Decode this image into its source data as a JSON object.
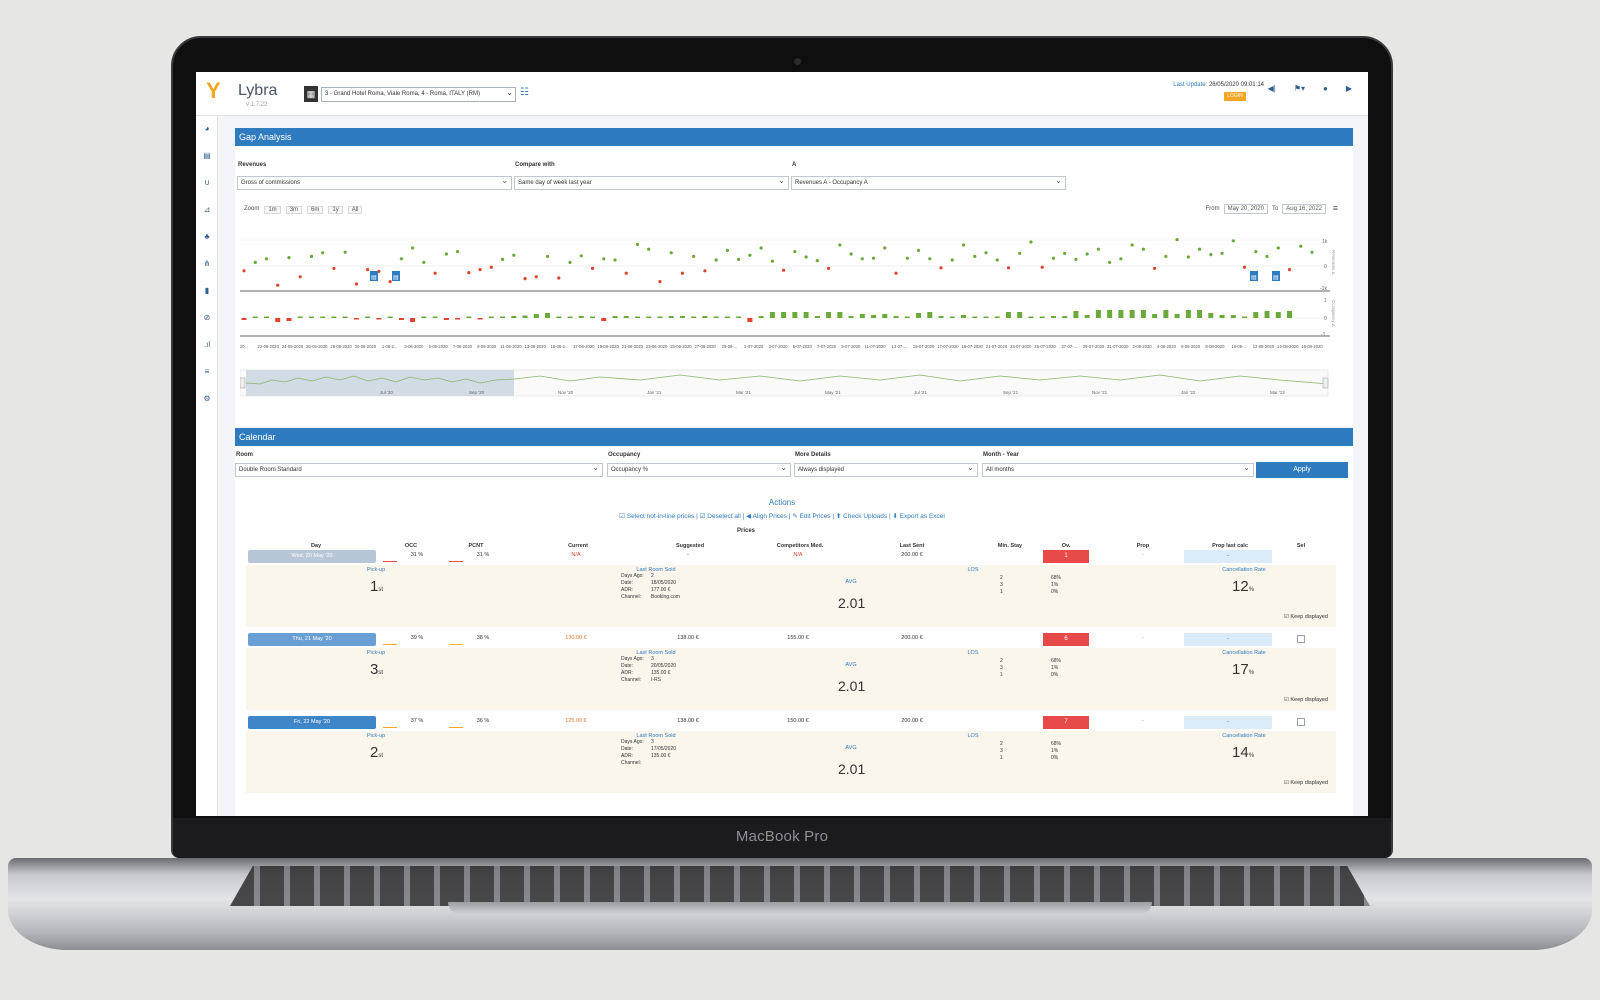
{
  "device": {
    "brand": "MacBook Pro"
  },
  "app": {
    "logo_mark": "Y",
    "logo_text": "Lybra",
    "version": "v 1.7.22",
    "hotel_select": "3 - Grand Hotel Roma, Viale Roma, 4 - Roma, ITALY (RM)",
    "last_update_label": "Last Update:",
    "last_update_value": "26/05/2020 09:01:14",
    "login_label": "LOGIN",
    "top_icons": [
      "share-icon",
      "flag-icon",
      "user-icon",
      "logout-icon"
    ]
  },
  "sidebar": [
    "dashboard-icon",
    "calendar-icon",
    "magnet-icon",
    "chart-icon",
    "users-icon",
    "hierarchy-icon",
    "document-icon",
    "target-icon",
    "signal-icon",
    "list-icon",
    "settings-icon"
  ],
  "gap_analysis": {
    "title": "Gap Analysis",
    "revenues_label": "Revenues",
    "revenues_value": "Gross of commissions",
    "compare_label": "Compare with",
    "compare_value": "Same day of week last year",
    "a_label": "A",
    "a_value": "Revenues A - Occupancy A",
    "zoom_label": "Zoom",
    "zoom_buttons": [
      "1m",
      "3m",
      "6m",
      "1y",
      "All"
    ],
    "from_label": "From",
    "from_value": "May 20, 2020",
    "to_label": "To",
    "to_value": "Aug 16, 2022",
    "x_ticks": [
      "20...",
      "22-05-2020",
      "24-05-2020",
      "26-05-2020",
      "28-05-2020",
      "30-05-2020",
      "1-06-2...",
      "3-06-2020",
      "5-06-2020",
      "7-06-2020",
      "9-06-2020",
      "11-06-2020",
      "13-06-2020",
      "15-06-2...",
      "17-06-2020",
      "19-06-2020",
      "21-06-2020",
      "23-06-2020",
      "25-06-2020",
      "27-06-2020",
      "29-06-...",
      "1-07-2020",
      "3-07-2020",
      "5-07-2020",
      "7-07-2020",
      "9-07-2020",
      "11-07-2020",
      "13-07-...",
      "15-07-2020",
      "17-07-2020",
      "19-07-2020",
      "21-07-2020",
      "23-07-2020",
      "25-07-2020",
      "27-07-...",
      "29-07-2020",
      "31-07-2020",
      "2-08-2020",
      "4-08-2020",
      "6-08-2020",
      "8-08-2020",
      "10-08-...",
      "12-08-2020",
      "14-08-2020",
      "16-08-2020"
    ],
    "nav_labels": [
      "Jul '20",
      "Sep '20",
      "Nov '20",
      "Jan '21",
      "Mar '21",
      "May '21",
      "Jul '21",
      "Sep '21",
      "Nov '21",
      "Jan '22",
      "Mar '22",
      "May '22"
    ],
    "y_top_ticks": [
      "1k",
      "0",
      "-1k"
    ],
    "y_bottom_ticks": [
      "1",
      "0",
      "-1"
    ],
    "y_top_label": "Revenues Δ",
    "y_bottom_label": "Occupancy Δ"
  },
  "chart_data": {
    "type": "scatter",
    "series": [
      {
        "name": "Revenues Δ",
        "values": [
          -80,
          60,
          120,
          -320,
          140,
          -180,
          160,
          220,
          -40,
          230,
          -300,
          -60,
          -90,
          -260,
          120,
          300,
          60,
          -120,
          200,
          240,
          -110,
          -60,
          -20,
          110,
          180,
          -210,
          -180,
          160,
          -200,
          60,
          170,
          -40,
          120,
          100,
          -120,
          360,
          280,
          -260,
          220,
          -120,
          160,
          -80,
          100,
          260,
          110,
          180,
          300,
          80,
          -70,
          240,
          150,
          90,
          -40,
          350,
          200,
          120,
          130,
          300,
          -120,
          130,
          260,
          120,
          -30,
          100,
          350,
          160,
          220,
          100,
          -30,
          210,
          400,
          -20,
          130,
          210,
          110,
          200,
          280,
          60,
          120,
          350,
          280,
          -40,
          160,
          440,
          150,
          280,
          190,
          210,
          420,
          -20,
          240,
          160,
          300,
          -60,
          330,
          230
        ]
      },
      {
        "name": "Occupancy Δ",
        "values": [
          -0.2,
          0.0,
          0.0,
          -0.4,
          -0.3,
          0.1,
          0.0,
          0.05,
          0.1,
          0.05,
          -0.1,
          0.05,
          -0.1,
          0.1,
          -0.2,
          -0.4,
          0.05,
          0.1,
          -0.2,
          -0.1,
          0.05,
          -0.1,
          0.05,
          0.1,
          0.2,
          0.25,
          0.4,
          0.5,
          0.1,
          0.1,
          0.2,
          0.1,
          -0.3,
          0.2,
          0.2,
          0.05,
          0.05,
          0.1,
          0.2,
          0.2,
          0.1,
          0.2,
          0.1,
          0.1,
          0.1,
          -0.4,
          0.2,
          0.6,
          0.6,
          0.6,
          0.6,
          0.2,
          0.6,
          0.6,
          0.2,
          0.4,
          0.3,
          0.4,
          0.2,
          0.1,
          0.5,
          0.6,
          0.2,
          0.1,
          0.3,
          0.1,
          0.1,
          0.1,
          0.6,
          0.6,
          0.1,
          0.1,
          0.2,
          0.2,
          0.7,
          0.3,
          0.8,
          0.8,
          0.8,
          0.8,
          0.8,
          0.4,
          0.8,
          0.4,
          0.8,
          0.8,
          0.5,
          0.3,
          0.3,
          0.1,
          0.6,
          0.7,
          0.6,
          0.7
        ]
      }
    ],
    "xlabel": "",
    "ylabel": ""
  },
  "calendar": {
    "title": "Calendar",
    "room_label": "Room",
    "room_value": "Double Room Standard",
    "occupancy_label": "Occupancy",
    "occupancy_value": "Occupancy %",
    "more_label": "More Details",
    "more_value": "Always displayed",
    "month_label": "Month - Year",
    "month_value": "All months",
    "apply_label": "Apply",
    "actions_title": "Actions",
    "actions_links": "☑ Select not-in-line prices | ☑ Deselect all | ◀ Align Prices | ✎ Edit Prices | ⬆ Check Uploads | ⬇ Export as Excel",
    "prices_label": "Prices",
    "columns": [
      "Day",
      "OCC",
      "PCNT",
      "Current",
      "Suggested",
      "Competitors Med.",
      "Last Sent",
      "Min. Stay",
      "Ov.",
      "Prop",
      "Prop last calc",
      "Sel"
    ],
    "days": [
      {
        "day": "Wed, 20 May '20",
        "occ": "31 %",
        "pcnt": "31 %",
        "current": "N/A",
        "suggested": "-",
        "competitors": "N/A",
        "last_sent": "200.00 €",
        "min_stay": "",
        "ov": "1",
        "prop": "-",
        "prop_last": "-",
        "pickup_label": "Pick-up",
        "pickup": "1",
        "pickup_unit": "st",
        "last_room_label": "Last Room Sold",
        "lr_keys": [
          "Days Ago:",
          "Date:",
          "ADR:",
          "Channel:"
        ],
        "lr_vals": [
          "2",
          "18/05/2020",
          "177.00 €",
          "Booking.com"
        ],
        "avg_label": "AVG",
        "avg": "2.01",
        "los_label": "LOS",
        "los_rows": [
          [
            "2",
            "68%"
          ],
          [
            "3",
            "1%"
          ],
          [
            "1",
            "0%"
          ]
        ],
        "cancel_label": "Cancellation Rate",
        "cancel": "12",
        "cancel_unit": "%",
        "keep": "☑ Keep displayed",
        "color": "#b8c7d8",
        "current_class": "red",
        "comp_class": "red"
      },
      {
        "day": "Thu, 21 May '20",
        "occ": "39 %",
        "pcnt": "38 %",
        "current": "130.00 €",
        "suggested": "138.00 €",
        "competitors": "155.00 €",
        "last_sent": "200.00 €",
        "min_stay": "",
        "ov": "6",
        "prop": "-",
        "prop_last": "-",
        "pickup_label": "Pick-up",
        "pickup": "3",
        "pickup_unit": "st",
        "last_room_label": "Last Room Sold",
        "lr_keys": [
          "Days Ago:",
          "Date:",
          "ADR:",
          "Channel:"
        ],
        "lr_vals": [
          "3",
          "20/05/2020",
          "135.00 €",
          "I-RS"
        ],
        "avg_label": "AVG",
        "avg": "2.01",
        "los_label": "LOS",
        "los_rows": [
          [
            "2",
            "68%"
          ],
          [
            "3",
            "1%"
          ],
          [
            "1",
            "0%"
          ]
        ],
        "cancel_label": "Cancellation Rate",
        "cancel": "17",
        "cancel_unit": "%",
        "keep": "☑ Keep displayed",
        "color": "#6a9fd4",
        "current_class": "orange",
        "comp_class": ""
      },
      {
        "day": "Fri, 22 May '20",
        "occ": "37 %",
        "pcnt": "36 %",
        "current": "125.00 €",
        "suggested": "138.00 €",
        "competitors": "150.00 €",
        "last_sent": "200.00 €",
        "min_stay": "",
        "ov": "7",
        "prop": "-",
        "prop_last": "-",
        "pickup_label": "Pick-up",
        "pickup": "2",
        "pickup_unit": "st",
        "last_room_label": "Last Room Sold",
        "lr_keys": [
          "Days Ago:",
          "Date:",
          "ADR:",
          "Channel:"
        ],
        "lr_vals": [
          "3",
          "17/05/2020",
          "135.00 €",
          ""
        ],
        "avg_label": "AVG",
        "avg": "2.01",
        "los_label": "LOS",
        "los_rows": [
          [
            "2",
            "68%"
          ],
          [
            "3",
            "1%"
          ],
          [
            "1",
            "0%"
          ]
        ],
        "cancel_label": "Cancellation Rate",
        "cancel": "14",
        "cancel_unit": "%",
        "keep": "☑ Keep displayed",
        "color": "#3f86c9",
        "current_class": "orange",
        "comp_class": ""
      }
    ]
  }
}
